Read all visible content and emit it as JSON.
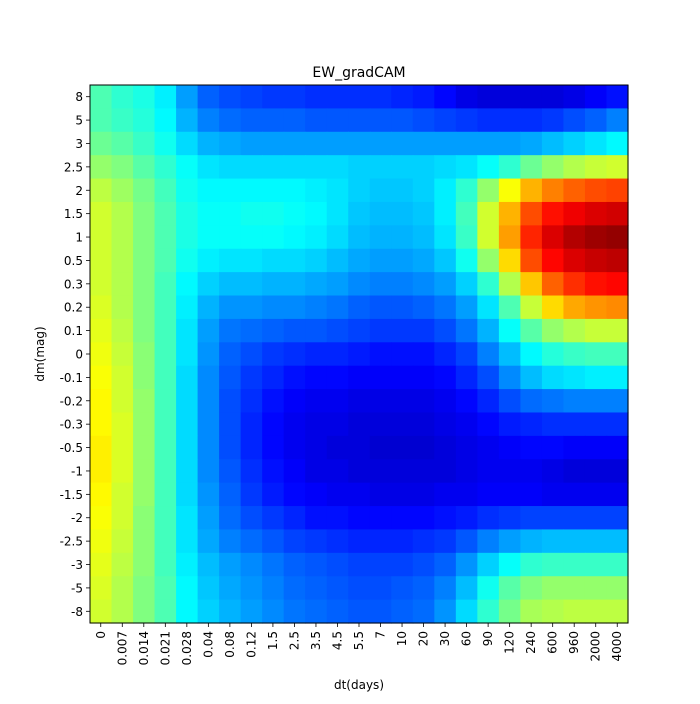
{
  "chart_data": {
    "type": "heatmap",
    "title": "EW_gradCAM",
    "xlabel": "dt(days)",
    "ylabel": "dm(mag)",
    "x_ticks": [
      "0",
      "0.007",
      "0.014",
      "0.021",
      "0.028",
      "0.04",
      "0.08",
      "0.12",
      "1.5",
      "2.5",
      "3.5",
      "4.5",
      "5.5",
      "7",
      "10",
      "20",
      "30",
      "60",
      "90",
      "120",
      "240",
      "600",
      "960",
      "2000",
      "4000"
    ],
    "y_ticks_top_to_bottom": [
      "8",
      "5",
      "3",
      "2.5",
      "2",
      "1.5",
      "1",
      "0.5",
      "0.3",
      "0.2",
      "0.1",
      "0",
      "-0.1",
      "-0.2",
      "-0.3",
      "-0.5",
      "-1",
      "-1.5",
      "-2",
      "-2.5",
      "-3",
      "-5",
      "-8"
    ],
    "colormap": "jet",
    "value_range": [
      0,
      1
    ],
    "grid": false,
    "legend": "none",
    "values_top_to_bottom": [
      [
        0.45,
        0.42,
        0.4,
        0.36,
        0.28,
        0.22,
        0.2,
        0.19,
        0.18,
        0.18,
        0.17,
        0.17,
        0.17,
        0.17,
        0.16,
        0.15,
        0.13,
        0.1,
        0.09,
        0.09,
        0.09,
        0.09,
        0.1,
        0.12,
        0.14
      ],
      [
        0.45,
        0.43,
        0.41,
        0.37,
        0.3,
        0.25,
        0.23,
        0.22,
        0.22,
        0.22,
        0.21,
        0.21,
        0.21,
        0.21,
        0.21,
        0.2,
        0.19,
        0.18,
        0.17,
        0.17,
        0.17,
        0.18,
        0.2,
        0.22,
        0.25
      ],
      [
        0.48,
        0.46,
        0.43,
        0.39,
        0.34,
        0.3,
        0.29,
        0.28,
        0.28,
        0.28,
        0.28,
        0.28,
        0.28,
        0.28,
        0.28,
        0.28,
        0.28,
        0.28,
        0.28,
        0.28,
        0.29,
        0.31,
        0.33,
        0.35,
        0.37
      ],
      [
        0.52,
        0.5,
        0.46,
        0.42,
        0.38,
        0.35,
        0.34,
        0.34,
        0.34,
        0.34,
        0.34,
        0.34,
        0.33,
        0.33,
        0.33,
        0.33,
        0.34,
        0.35,
        0.38,
        0.42,
        0.48,
        0.52,
        0.55,
        0.57,
        0.58
      ],
      [
        0.56,
        0.53,
        0.49,
        0.44,
        0.39,
        0.37,
        0.37,
        0.37,
        0.37,
        0.37,
        0.36,
        0.35,
        0.33,
        0.32,
        0.32,
        0.33,
        0.36,
        0.42,
        0.52,
        0.62,
        0.7,
        0.75,
        0.78,
        0.8,
        0.81
      ],
      [
        0.58,
        0.55,
        0.5,
        0.45,
        0.4,
        0.38,
        0.38,
        0.39,
        0.39,
        0.38,
        0.37,
        0.35,
        0.32,
        0.31,
        0.31,
        0.32,
        0.36,
        0.44,
        0.58,
        0.7,
        0.8,
        0.86,
        0.89,
        0.91,
        0.92
      ],
      [
        0.58,
        0.55,
        0.5,
        0.45,
        0.4,
        0.38,
        0.38,
        0.38,
        0.38,
        0.37,
        0.36,
        0.34,
        0.31,
        0.3,
        0.3,
        0.31,
        0.35,
        0.43,
        0.58,
        0.72,
        0.84,
        0.91,
        0.95,
        0.97,
        0.98
      ],
      [
        0.58,
        0.55,
        0.5,
        0.45,
        0.39,
        0.36,
        0.35,
        0.35,
        0.34,
        0.34,
        0.33,
        0.31,
        0.29,
        0.28,
        0.28,
        0.29,
        0.32,
        0.39,
        0.52,
        0.66,
        0.8,
        0.87,
        0.91,
        0.93,
        0.94
      ],
      [
        0.58,
        0.55,
        0.5,
        0.44,
        0.37,
        0.33,
        0.31,
        0.31,
        0.3,
        0.3,
        0.29,
        0.28,
        0.26,
        0.25,
        0.25,
        0.26,
        0.28,
        0.33,
        0.42,
        0.55,
        0.68,
        0.78,
        0.83,
        0.86,
        0.87
      ],
      [
        0.59,
        0.55,
        0.5,
        0.44,
        0.36,
        0.3,
        0.27,
        0.27,
        0.26,
        0.26,
        0.25,
        0.24,
        0.22,
        0.21,
        0.21,
        0.22,
        0.24,
        0.28,
        0.35,
        0.45,
        0.57,
        0.66,
        0.71,
        0.73,
        0.74
      ],
      [
        0.6,
        0.56,
        0.5,
        0.44,
        0.35,
        0.28,
        0.24,
        0.23,
        0.22,
        0.21,
        0.21,
        0.2,
        0.19,
        0.18,
        0.18,
        0.18,
        0.2,
        0.24,
        0.3,
        0.38,
        0.46,
        0.52,
        0.55,
        0.57,
        0.57
      ],
      [
        0.61,
        0.57,
        0.51,
        0.44,
        0.35,
        0.27,
        0.22,
        0.2,
        0.18,
        0.17,
        0.16,
        0.16,
        0.15,
        0.14,
        0.14,
        0.14,
        0.16,
        0.19,
        0.25,
        0.31,
        0.37,
        0.41,
        0.43,
        0.44,
        0.44
      ],
      [
        0.62,
        0.58,
        0.51,
        0.44,
        0.34,
        0.26,
        0.21,
        0.18,
        0.16,
        0.14,
        0.13,
        0.13,
        0.12,
        0.12,
        0.12,
        0.12,
        0.13,
        0.16,
        0.2,
        0.26,
        0.31,
        0.34,
        0.35,
        0.36,
        0.36
      ],
      [
        0.63,
        0.58,
        0.52,
        0.44,
        0.34,
        0.26,
        0.2,
        0.17,
        0.14,
        0.12,
        0.11,
        0.11,
        0.1,
        0.1,
        0.1,
        0.1,
        0.11,
        0.13,
        0.16,
        0.2,
        0.23,
        0.24,
        0.25,
        0.25,
        0.25
      ],
      [
        0.63,
        0.59,
        0.52,
        0.44,
        0.34,
        0.26,
        0.2,
        0.16,
        0.13,
        0.11,
        0.1,
        0.1,
        0.09,
        0.09,
        0.09,
        0.09,
        0.1,
        0.11,
        0.13,
        0.15,
        0.16,
        0.17,
        0.17,
        0.17,
        0.17
      ],
      [
        0.64,
        0.59,
        0.52,
        0.44,
        0.34,
        0.26,
        0.2,
        0.16,
        0.13,
        0.11,
        0.1,
        0.09,
        0.09,
        0.08,
        0.08,
        0.08,
        0.09,
        0.1,
        0.11,
        0.12,
        0.13,
        0.13,
        0.12,
        0.12,
        0.12
      ],
      [
        0.64,
        0.59,
        0.52,
        0.44,
        0.34,
        0.26,
        0.21,
        0.17,
        0.14,
        0.12,
        0.1,
        0.1,
        0.09,
        0.09,
        0.09,
        0.09,
        0.09,
        0.1,
        0.11,
        0.11,
        0.11,
        0.1,
        0.09,
        0.09,
        0.09
      ],
      [
        0.63,
        0.58,
        0.52,
        0.44,
        0.34,
        0.27,
        0.22,
        0.18,
        0.15,
        0.13,
        0.12,
        0.11,
        0.11,
        0.1,
        0.1,
        0.1,
        0.11,
        0.11,
        0.12,
        0.12,
        0.12,
        0.11,
        0.11,
        0.11,
        0.11
      ],
      [
        0.62,
        0.58,
        0.51,
        0.44,
        0.35,
        0.28,
        0.23,
        0.2,
        0.18,
        0.16,
        0.14,
        0.14,
        0.13,
        0.13,
        0.13,
        0.13,
        0.14,
        0.15,
        0.17,
        0.18,
        0.19,
        0.19,
        0.19,
        0.19,
        0.19
      ],
      [
        0.61,
        0.57,
        0.51,
        0.44,
        0.35,
        0.29,
        0.25,
        0.23,
        0.21,
        0.19,
        0.18,
        0.17,
        0.16,
        0.16,
        0.16,
        0.17,
        0.18,
        0.21,
        0.25,
        0.28,
        0.3,
        0.31,
        0.31,
        0.31,
        0.31
      ],
      [
        0.6,
        0.56,
        0.51,
        0.44,
        0.36,
        0.31,
        0.28,
        0.26,
        0.24,
        0.22,
        0.21,
        0.2,
        0.19,
        0.19,
        0.19,
        0.2,
        0.22,
        0.27,
        0.33,
        0.38,
        0.42,
        0.43,
        0.43,
        0.43,
        0.43
      ],
      [
        0.59,
        0.55,
        0.5,
        0.45,
        0.37,
        0.32,
        0.29,
        0.27,
        0.25,
        0.23,
        0.22,
        0.21,
        0.2,
        0.2,
        0.21,
        0.22,
        0.25,
        0.31,
        0.39,
        0.46,
        0.5,
        0.52,
        0.52,
        0.52,
        0.52
      ],
      [
        0.58,
        0.55,
        0.5,
        0.45,
        0.37,
        0.33,
        0.3,
        0.28,
        0.26,
        0.24,
        0.23,
        0.22,
        0.21,
        0.21,
        0.22,
        0.23,
        0.27,
        0.34,
        0.42,
        0.49,
        0.54,
        0.55,
        0.56,
        0.56,
        0.56
      ]
    ]
  }
}
